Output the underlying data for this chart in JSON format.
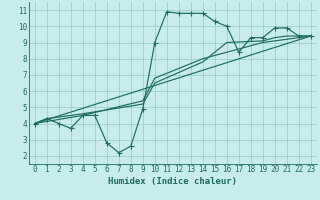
{
  "xlabel": "Humidex (Indice chaleur)",
  "bg_color": "#c8ecea",
  "grid_color": "#9ecfcc",
  "line_color": "#1e6b5e",
  "xlim": [
    -0.5,
    23.5
  ],
  "ylim": [
    1.5,
    11.5
  ],
  "xticks": [
    0,
    1,
    2,
    3,
    4,
    5,
    6,
    7,
    8,
    9,
    10,
    11,
    12,
    13,
    14,
    15,
    16,
    17,
    18,
    19,
    20,
    21,
    22,
    23
  ],
  "yticks": [
    2,
    3,
    4,
    5,
    6,
    7,
    8,
    9,
    10,
    11
  ],
  "line1_x": [
    0,
    1,
    2,
    3,
    4,
    5,
    6,
    7,
    8,
    9,
    10,
    11,
    12,
    13,
    14,
    15,
    16,
    17,
    18,
    19,
    20,
    21,
    22,
    23
  ],
  "line1_y": [
    4.0,
    4.3,
    4.0,
    3.7,
    4.5,
    4.5,
    2.8,
    2.2,
    2.6,
    4.9,
    9.0,
    10.9,
    10.8,
    10.8,
    10.8,
    10.3,
    10.0,
    8.4,
    9.3,
    9.3,
    9.9,
    9.9,
    9.4,
    9.4
  ],
  "line2_x": [
    0,
    23
  ],
  "line2_y": [
    4.0,
    9.4
  ],
  "line3_x": [
    0,
    1,
    4,
    9,
    10,
    14,
    16,
    19,
    20,
    21,
    23
  ],
  "line3_y": [
    4.0,
    4.3,
    4.6,
    5.2,
    6.5,
    7.8,
    9.0,
    9.1,
    9.3,
    9.4,
    9.4
  ],
  "line4_x": [
    0,
    4,
    9,
    10,
    14,
    19,
    23
  ],
  "line4_y": [
    4.0,
    4.5,
    5.4,
    6.8,
    8.0,
    9.0,
    9.4
  ]
}
